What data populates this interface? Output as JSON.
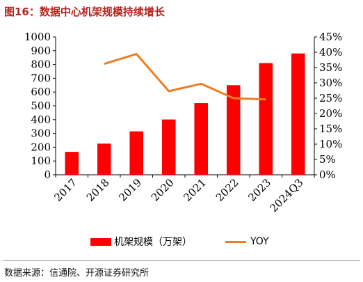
{
  "header": {
    "title": "图16：数据中心机架规模持续增长"
  },
  "footer": {
    "source": "数据来源：信通院、开源证券研究所"
  },
  "colors": {
    "bar": "#ff0000",
    "line": "#ef7d22",
    "title": "#b3261e"
  },
  "chart_data": {
    "type": "bar",
    "categories": [
      "2017",
      "2018",
      "2019",
      "2020",
      "2021",
      "2022",
      "2023",
      "2024Q3"
    ],
    "series": [
      {
        "name": "机架规模（万架）",
        "type": "bar",
        "axis": "left",
        "values": [
          166,
          226,
          315,
          401,
          520,
          650,
          810,
          880
        ]
      },
      {
        "name": "YOY",
        "type": "line",
        "axis": "right",
        "values": [
          null,
          0.362,
          0.394,
          0.273,
          0.297,
          0.25,
          0.246,
          null
        ]
      }
    ],
    "left_axis": {
      "ylim": [
        0,
        1000
      ],
      "ticks": [
        "0",
        "100",
        "200",
        "300",
        "400",
        "500",
        "600",
        "700",
        "800",
        "900",
        "1000"
      ]
    },
    "right_axis": {
      "ylim": [
        0,
        0.45
      ],
      "ticks": [
        "0%",
        "5%",
        "10%",
        "15%",
        "20%",
        "25%",
        "30%",
        "35%",
        "40%",
        "45%"
      ]
    },
    "legend": {
      "position": "bottom"
    },
    "grid": false
  }
}
